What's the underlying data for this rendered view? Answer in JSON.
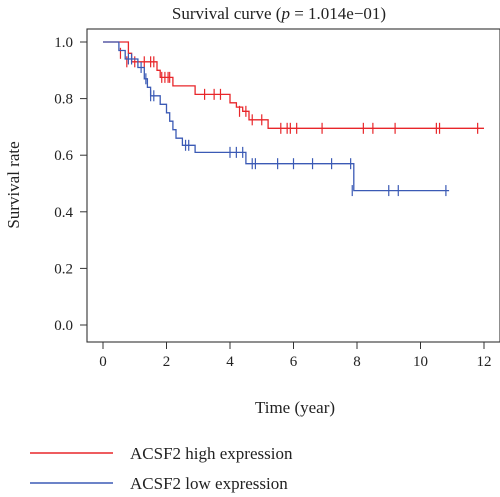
{
  "chart_data": {
    "type": "line",
    "title": "Survival curve (p = 1.014e−01)",
    "title_parts": {
      "prefix": "Survival curve (",
      "p_symbol": "p",
      "suffix": " = 1.014e−01)"
    },
    "xlabel": "Time (year)",
    "ylabel": "Survival rate",
    "xlim": [
      0,
      12
    ],
    "ylim": [
      0,
      1
    ],
    "x_ticks": [
      0,
      2,
      4,
      6,
      8,
      10,
      12
    ],
    "y_ticks": [
      "0.0",
      "0.2",
      "0.4",
      "0.6",
      "0.8",
      "1.0"
    ],
    "grid": false,
    "legend_position": "bottom",
    "series": [
      {
        "name": "ACSF2 high expression",
        "color": "#e8262a",
        "steps": [
          [
            0,
            1.0
          ],
          [
            0.8,
            0.96
          ],
          [
            0.9,
            0.93
          ],
          [
            1.7,
            0.9
          ],
          [
            1.8,
            0.875
          ],
          [
            2.2,
            0.845
          ],
          [
            2.9,
            0.815
          ],
          [
            4.0,
            0.785
          ],
          [
            4.2,
            0.77
          ],
          [
            4.4,
            0.755
          ],
          [
            4.6,
            0.725
          ],
          [
            5.2,
            0.695
          ],
          [
            12.0,
            0.695
          ]
        ],
        "censored": [
          [
            0.55,
            0.96
          ],
          [
            0.75,
            0.93
          ],
          [
            1.0,
            0.93
          ],
          [
            1.3,
            0.93
          ],
          [
            1.5,
            0.93
          ],
          [
            1.6,
            0.93
          ],
          [
            1.85,
            0.875
          ],
          [
            1.95,
            0.875
          ],
          [
            2.05,
            0.875
          ],
          [
            2.1,
            0.875
          ],
          [
            3.2,
            0.815
          ],
          [
            3.5,
            0.815
          ],
          [
            3.7,
            0.815
          ],
          [
            4.3,
            0.755
          ],
          [
            4.5,
            0.755
          ],
          [
            4.7,
            0.725
          ],
          [
            5.0,
            0.725
          ],
          [
            5.6,
            0.695
          ],
          [
            5.8,
            0.695
          ],
          [
            5.9,
            0.695
          ],
          [
            6.1,
            0.695
          ],
          [
            6.9,
            0.695
          ],
          [
            8.2,
            0.695
          ],
          [
            8.5,
            0.695
          ],
          [
            9.2,
            0.695
          ],
          [
            10.5,
            0.695
          ],
          [
            10.6,
            0.695
          ],
          [
            11.8,
            0.695
          ]
        ]
      },
      {
        "name": "ACSF2 low expression",
        "color": "#3b5ab5",
        "steps": [
          [
            0,
            1.0
          ],
          [
            0.5,
            0.97
          ],
          [
            0.7,
            0.94
          ],
          [
            1.1,
            0.91
          ],
          [
            1.3,
            0.87
          ],
          [
            1.4,
            0.84
          ],
          [
            1.5,
            0.81
          ],
          [
            1.8,
            0.78
          ],
          [
            2.0,
            0.75
          ],
          [
            2.1,
            0.72
          ],
          [
            2.2,
            0.69
          ],
          [
            2.3,
            0.66
          ],
          [
            2.5,
            0.635
          ],
          [
            2.9,
            0.61
          ],
          [
            4.5,
            0.57
          ],
          [
            7.9,
            0.475
          ],
          [
            10.9,
            0.475
          ]
        ],
        "censored": [
          [
            0.8,
            0.94
          ],
          [
            0.9,
            0.94
          ],
          [
            1.2,
            0.91
          ],
          [
            1.35,
            0.87
          ],
          [
            1.5,
            0.81
          ],
          [
            1.6,
            0.81
          ],
          [
            2.6,
            0.635
          ],
          [
            2.7,
            0.635
          ],
          [
            4.0,
            0.61
          ],
          [
            4.2,
            0.61
          ],
          [
            4.4,
            0.61
          ],
          [
            4.7,
            0.57
          ],
          [
            4.8,
            0.57
          ],
          [
            5.5,
            0.57
          ],
          [
            6.0,
            0.57
          ],
          [
            6.6,
            0.57
          ],
          [
            7.2,
            0.57
          ],
          [
            7.8,
            0.57
          ],
          [
            7.85,
            0.475
          ],
          [
            9.0,
            0.475
          ],
          [
            9.3,
            0.475
          ],
          [
            10.8,
            0.475
          ]
        ]
      }
    ]
  }
}
